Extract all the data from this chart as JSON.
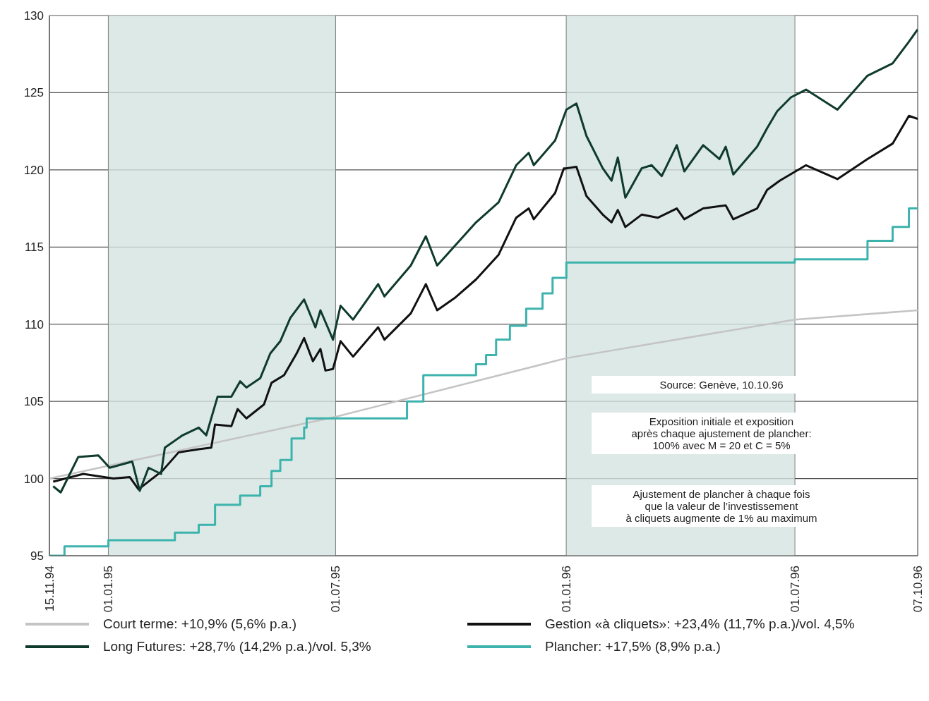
{
  "chart_data": {
    "type": "line",
    "xlim": [
      "1994-11-15",
      "1996-10-07"
    ],
    "ylim": [
      95,
      130
    ],
    "yticks": [
      95,
      100,
      105,
      110,
      115,
      120,
      125,
      130
    ],
    "xticks": [
      {
        "value": "1994-11-15",
        "label": "15.11.94"
      },
      {
        "value": "1995-01-01",
        "label": "01.01.95"
      },
      {
        "value": "1995-07-01",
        "label": "01.07.95"
      },
      {
        "value": "1996-01-01",
        "label": "01.01.96"
      },
      {
        "value": "1996-07-01",
        "label": "01.07.96"
      },
      {
        "value": "1996-10-07",
        "label": "07.10.96"
      }
    ],
    "grid": true,
    "legend": "bottom",
    "marker": "none",
    "line_style": "solid",
    "bands": [
      {
        "axis": "x",
        "from": "1995-01-01",
        "to": "1995-07-01",
        "color": "#d3e3e0"
      },
      {
        "axis": "x",
        "from": "1996-01-01",
        "to": "1996-07-01",
        "color": "#d3e3e0"
      }
    ],
    "annotations": [
      "Source: Genève, 10.10.96",
      "Exposition initiale et exposition\naprès chaque ajustement de plancher:\n100% avec M = 20 et C = 5%",
      "Ajustement de plancher à chaque fois\nque la valeur de l’investissement\nà cliquets augmente de 1% au maximum"
    ],
    "series": [
      {
        "name": "Court terme: +10,9% (5,6% p.a.)",
        "color": "#c4c4c4",
        "x": [
          "1994-11-15",
          "1995-07-01",
          "1996-01-01",
          "1996-07-01",
          "1996-10-07"
        ],
        "values": [
          100,
          104.0,
          107.8,
          110.3,
          110.9
        ]
      },
      {
        "name": "Gestion «à cliquets»: +23,4% (11,7% p.a.)/vol. 4,5%",
        "color": "#111111",
        "x": [
          "1994-11-18",
          "1994-12-12",
          "1995-01-05",
          "1995-01-18",
          "1995-01-25",
          "1995-02-13",
          "1995-02-26",
          "1995-03-14",
          "1995-03-24",
          "1995-03-27",
          "1995-04-09",
          "1995-04-14",
          "1995-04-21",
          "1995-05-05",
          "1995-05-11",
          "1995-05-21",
          "1995-05-31",
          "1995-06-06",
          "1995-06-13",
          "1995-06-19",
          "1995-06-23",
          "1995-06-29",
          "1995-07-05",
          "1995-07-15",
          "1995-08-04",
          "1995-08-09",
          "1995-08-30",
          "1995-09-11",
          "1995-09-20",
          "1995-10-04",
          "1995-10-21",
          "1995-11-08",
          "1995-11-22",
          "1995-12-02",
          "1995-12-06",
          "1995-12-23",
          "1995-12-30",
          "1996-01-01",
          "1996-01-09",
          "1996-01-17",
          "1996-01-30",
          "1996-02-06",
          "1996-02-11",
          "1996-02-17",
          "1996-03-01",
          "1996-03-14",
          "1996-03-29",
          "1996-04-04",
          "1996-04-19",
          "1996-05-07",
          "1996-05-13",
          "1996-06-01",
          "1996-06-09",
          "1996-06-19",
          "1996-07-10",
          "1996-08-04",
          "1996-08-28",
          "1996-09-17",
          "1996-09-30",
          "1996-10-07"
        ],
        "values": [
          99.8,
          100.3,
          100.0,
          100.1,
          99.3,
          100.5,
          101.7,
          101.9,
          102.0,
          103.5,
          103.4,
          104.5,
          103.9,
          104.8,
          106.2,
          106.7,
          108.1,
          109.1,
          107.6,
          108.4,
          107.0,
          107.1,
          108.9,
          107.9,
          109.8,
          109.0,
          110.7,
          112.6,
          110.9,
          111.7,
          112.9,
          114.5,
          116.9,
          117.5,
          116.8,
          118.5,
          120.1,
          120.1,
          120.2,
          118.3,
          117.1,
          116.6,
          117.4,
          116.3,
          117.1,
          116.9,
          117.5,
          116.8,
          117.5,
          117.7,
          116.8,
          117.5,
          118.7,
          119.3,
          120.3,
          119.4,
          120.7,
          121.7,
          123.5,
          123.3
        ]
      },
      {
        "name": "Long Futures: +28,7% (14,2% p.a.)/vol. 5,3%",
        "color": "#0f3b2c",
        "x": [
          "1994-11-18",
          "1994-11-24",
          "1994-12-08",
          "1994-12-24",
          "1995-01-02",
          "1995-01-20",
          "1995-01-26",
          "1995-02-02",
          "1995-02-12",
          "1995-02-15",
          "1995-03-01",
          "1995-03-14",
          "1995-03-20",
          "1995-03-29",
          "1995-04-09",
          "1995-04-16",
          "1995-04-21",
          "1995-05-02",
          "1995-05-10",
          "1995-05-18",
          "1995-05-26",
          "1995-06-06",
          "1995-06-15",
          "1995-06-19",
          "1995-06-29",
          "1995-07-05",
          "1995-07-15",
          "1995-08-04",
          "1995-08-09",
          "1995-08-30",
          "1995-09-11",
          "1995-09-20",
          "1995-09-30",
          "1995-10-21",
          "1995-11-08",
          "1995-11-22",
          "1995-12-02",
          "1995-12-06",
          "1995-12-23",
          "1996-01-01",
          "1996-01-09",
          "1996-01-17",
          "1996-01-30",
          "1996-02-06",
          "1996-02-11",
          "1996-02-17",
          "1996-03-01",
          "1996-03-09",
          "1996-03-17",
          "1996-03-29",
          "1996-04-04",
          "1996-04-19",
          "1996-05-02",
          "1996-05-07",
          "1996-05-13",
          "1996-06-01",
          "1996-06-09",
          "1996-06-17",
          "1996-06-28",
          "1996-07-10",
          "1996-08-04",
          "1996-08-28",
          "1996-09-17",
          "1996-09-30",
          "1996-10-07"
        ],
        "values": [
          99.5,
          99.1,
          101.4,
          101.5,
          100.7,
          101.1,
          99.2,
          100.7,
          100.3,
          102.0,
          102.8,
          103.3,
          102.8,
          105.3,
          105.3,
          106.3,
          105.9,
          106.5,
          108.1,
          108.9,
          110.4,
          111.6,
          109.8,
          110.9,
          109.0,
          111.2,
          110.3,
          112.6,
          111.8,
          113.8,
          115.7,
          113.8,
          114.7,
          116.6,
          117.9,
          120.3,
          121.1,
          120.3,
          121.9,
          123.9,
          124.3,
          122.2,
          120.1,
          119.3,
          120.8,
          118.2,
          120.1,
          120.3,
          119.6,
          121.6,
          119.9,
          121.6,
          120.7,
          121.5,
          119.7,
          121.5,
          122.7,
          123.8,
          124.7,
          125.2,
          123.9,
          126.1,
          126.9,
          128.3,
          129.1
        ]
      },
      {
        "name": "Plancher: +17,5% (8,9% p.a.)",
        "type": "step",
        "color": "#3db3ad",
        "x": [
          "1994-11-15",
          "1994-11-27",
          "1995-01-01",
          "1995-02-23",
          "1995-03-14",
          "1995-03-27",
          "1995-04-16",
          "1995-05-02",
          "1995-05-11",
          "1995-05-18",
          "1995-05-27",
          "1995-06-06",
          "1995-06-08",
          "1995-08-27",
          "1995-09-09",
          "1995-10-21",
          "1995-10-29",
          "1995-11-06",
          "1995-11-17",
          "1995-11-30",
          "1995-12-13",
          "1995-12-21",
          "1996-01-01",
          "1996-07-01",
          "1996-08-28",
          "1996-09-17",
          "1996-09-30",
          "1996-10-07"
        ],
        "values": [
          95.0,
          95.6,
          96.0,
          96.5,
          97.0,
          98.3,
          98.9,
          99.5,
          100.5,
          101.2,
          102.6,
          103.3,
          103.9,
          105.0,
          106.7,
          107.4,
          108.0,
          109.0,
          109.9,
          111.0,
          112.0,
          113.0,
          114.0,
          114.2,
          115.4,
          116.3,
          117.5,
          117.5
        ]
      }
    ]
  }
}
